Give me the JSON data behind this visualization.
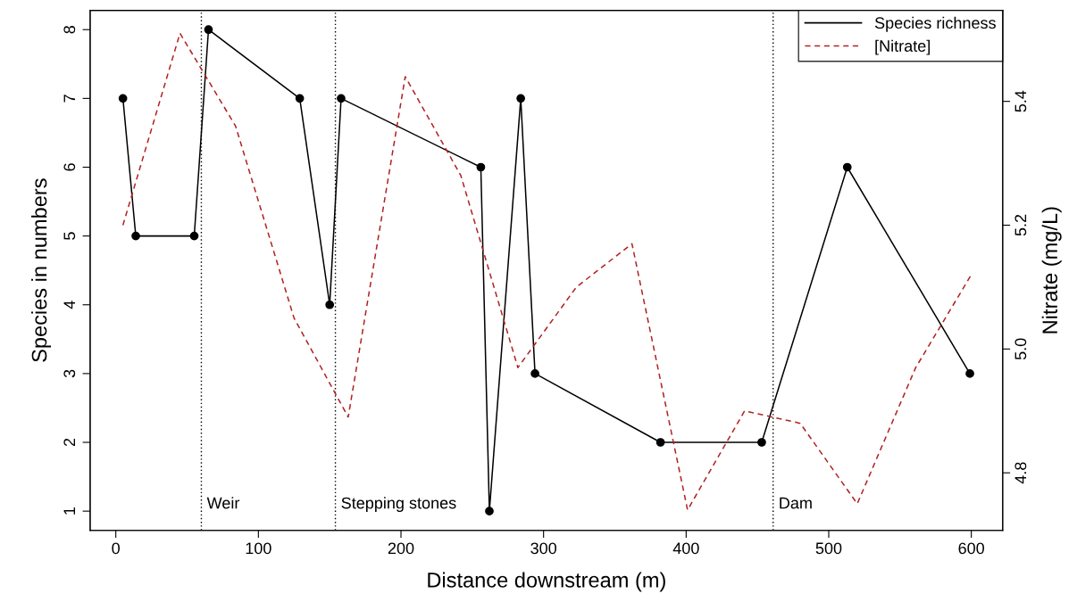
{
  "chart_data": {
    "type": "line",
    "xlabel": "Distance downstream (m)",
    "ylabel": "Species in numbers",
    "y2label": "Nitrate (mg/L)",
    "xlim": [
      -18,
      622
    ],
    "xticks": [
      0,
      100,
      200,
      300,
      400,
      500,
      600
    ],
    "ylim": [
      0.72,
      8.28
    ],
    "yticks": [
      1,
      2,
      3,
      4,
      5,
      6,
      7,
      8
    ],
    "y2lim": [
      4.707,
      5.547
    ],
    "y2ticks": [
      4.8,
      {
        "value": 5.0,
        "label": "5.0"
      },
      5.2,
      5.4
    ],
    "series": [
      {
        "name": "Species richness",
        "color": "#000000",
        "marker": "circle",
        "line_style": "solid",
        "x": [
          5,
          14,
          55,
          65,
          129,
          150,
          158,
          256,
          262,
          284,
          294,
          382,
          453,
          513,
          599
        ],
        "values": [
          7,
          5,
          5,
          8,
          7,
          4,
          7,
          6,
          1,
          7,
          3,
          2,
          2,
          6,
          3
        ]
      },
      {
        "name": "[Nitrate]",
        "color": "#b22222",
        "marker": "none",
        "line_style": "dashed",
        "axis": "y2",
        "x": [
          5,
          45,
          84,
          125,
          163,
          203,
          242,
          282,
          323,
          362,
          401,
          441,
          480,
          520,
          561,
          600
        ],
        "values": [
          5.2,
          5.51,
          5.36,
          5.05,
          4.89,
          5.44,
          5.28,
          4.97,
          5.1,
          5.17,
          4.74,
          4.9,
          4.88,
          4.75,
          4.97,
          5.12
        ]
      }
    ],
    "ref_lines": [
      {
        "axis": "x",
        "value": 60,
        "label": "Weir",
        "color": "#000000",
        "line_style": "dotted"
      },
      {
        "axis": "x",
        "value": 154,
        "label": "Stepping stones",
        "color": "#000000",
        "line_style": "dotted"
      },
      {
        "axis": "x",
        "value": 461,
        "label": "Dam",
        "color": "#000000",
        "line_style": "dotted"
      }
    ],
    "legend": "top right",
    "grid": false
  }
}
